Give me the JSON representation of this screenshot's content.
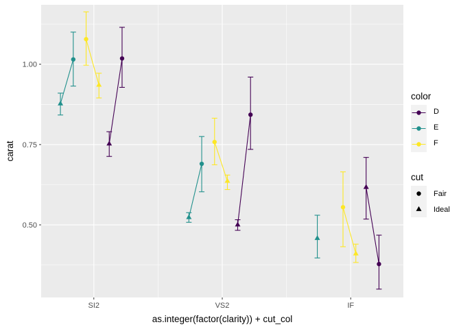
{
  "chart_data": {
    "type": "scatter",
    "xlabel": "as.integer(factor(clarity)) + cut_col",
    "ylabel": "carat",
    "categories": [
      "SI2",
      "VS2",
      "IF"
    ],
    "xlim": [
      0.59,
      3.41
    ],
    "ylim": [
      0.274,
      1.185
    ],
    "yticks": [
      0.5,
      0.75,
      1.0
    ],
    "ytick_labels": [
      "0.50",
      "0.75",
      "1.00"
    ],
    "grid": true,
    "legend_position": "right",
    "legends": {
      "color": {
        "title": "color",
        "entries": [
          {
            "label": "D",
            "color": "#440154"
          },
          {
            "label": "E",
            "color": "#21908C"
          },
          {
            "label": "F",
            "color": "#FDE725"
          }
        ]
      },
      "cut": {
        "title": "cut",
        "entries": [
          {
            "label": "Fair",
            "shape": "circle"
          },
          {
            "label": "Ideal",
            "shape": "triangle"
          }
        ]
      }
    },
    "series": [
      {
        "color_group": "E",
        "color": "#21908C",
        "points": [
          {
            "x": 0.74,
            "cut": "Ideal",
            "y": 0.877,
            "lo": 0.842,
            "hi": 0.91
          },
          {
            "x": 0.84,
            "cut": "Fair",
            "y": 1.015,
            "lo": 0.932,
            "hi": 1.1
          }
        ]
      },
      {
        "color_group": "F",
        "color": "#FDE725",
        "points": [
          {
            "x": 0.94,
            "cut": "Fair",
            "y": 1.078,
            "lo": 0.997,
            "hi": 1.163
          },
          {
            "x": 1.04,
            "cut": "Ideal",
            "y": 0.935,
            "lo": 0.895,
            "hi": 0.972
          }
        ]
      },
      {
        "color_group": "D",
        "color": "#440154",
        "points": [
          {
            "x": 1.12,
            "cut": "Ideal",
            "y": 0.752,
            "lo": 0.713,
            "hi": 0.79
          },
          {
            "x": 1.22,
            "cut": "Fair",
            "y": 1.018,
            "lo": 0.928,
            "hi": 1.115
          }
        ]
      },
      {
        "color_group": "E",
        "color": "#21908C",
        "points": [
          {
            "x": 1.74,
            "cut": "Ideal",
            "y": 0.523,
            "lo": 0.508,
            "hi": 0.538
          },
          {
            "x": 1.84,
            "cut": "Fair",
            "y": 0.69,
            "lo": 0.603,
            "hi": 0.775
          }
        ]
      },
      {
        "color_group": "F",
        "color": "#FDE725",
        "points": [
          {
            "x": 1.94,
            "cut": "Fair",
            "y": 0.758,
            "lo": 0.687,
            "hi": 0.832
          },
          {
            "x": 2.04,
            "cut": "Ideal",
            "y": 0.636,
            "lo": 0.61,
            "hi": 0.655
          }
        ]
      },
      {
        "color_group": "D",
        "color": "#440154",
        "points": [
          {
            "x": 2.12,
            "cut": "Ideal",
            "y": 0.5,
            "lo": 0.483,
            "hi": 0.516
          },
          {
            "x": 2.22,
            "cut": "Fair",
            "y": 0.843,
            "lo": 0.735,
            "hi": 0.96
          }
        ]
      },
      {
        "color_group": "E",
        "color": "#21908C",
        "points": [
          {
            "x": 2.74,
            "cut": "Ideal",
            "y": 0.458,
            "lo": 0.397,
            "hi": 0.53
          }
        ]
      },
      {
        "color_group": "F",
        "color": "#FDE725",
        "points": [
          {
            "x": 2.94,
            "cut": "Fair",
            "y": 0.555,
            "lo": 0.432,
            "hi": 0.665
          },
          {
            "x": 3.04,
            "cut": "Ideal",
            "y": 0.41,
            "lo": 0.383,
            "hi": 0.44
          }
        ]
      },
      {
        "color_group": "D",
        "color": "#440154",
        "points": [
          {
            "x": 3.12,
            "cut": "Ideal",
            "y": 0.617,
            "lo": 0.518,
            "hi": 0.71
          },
          {
            "x": 3.22,
            "cut": "Fair",
            "y": 0.378,
            "lo": 0.3,
            "hi": 0.468
          }
        ]
      }
    ]
  }
}
